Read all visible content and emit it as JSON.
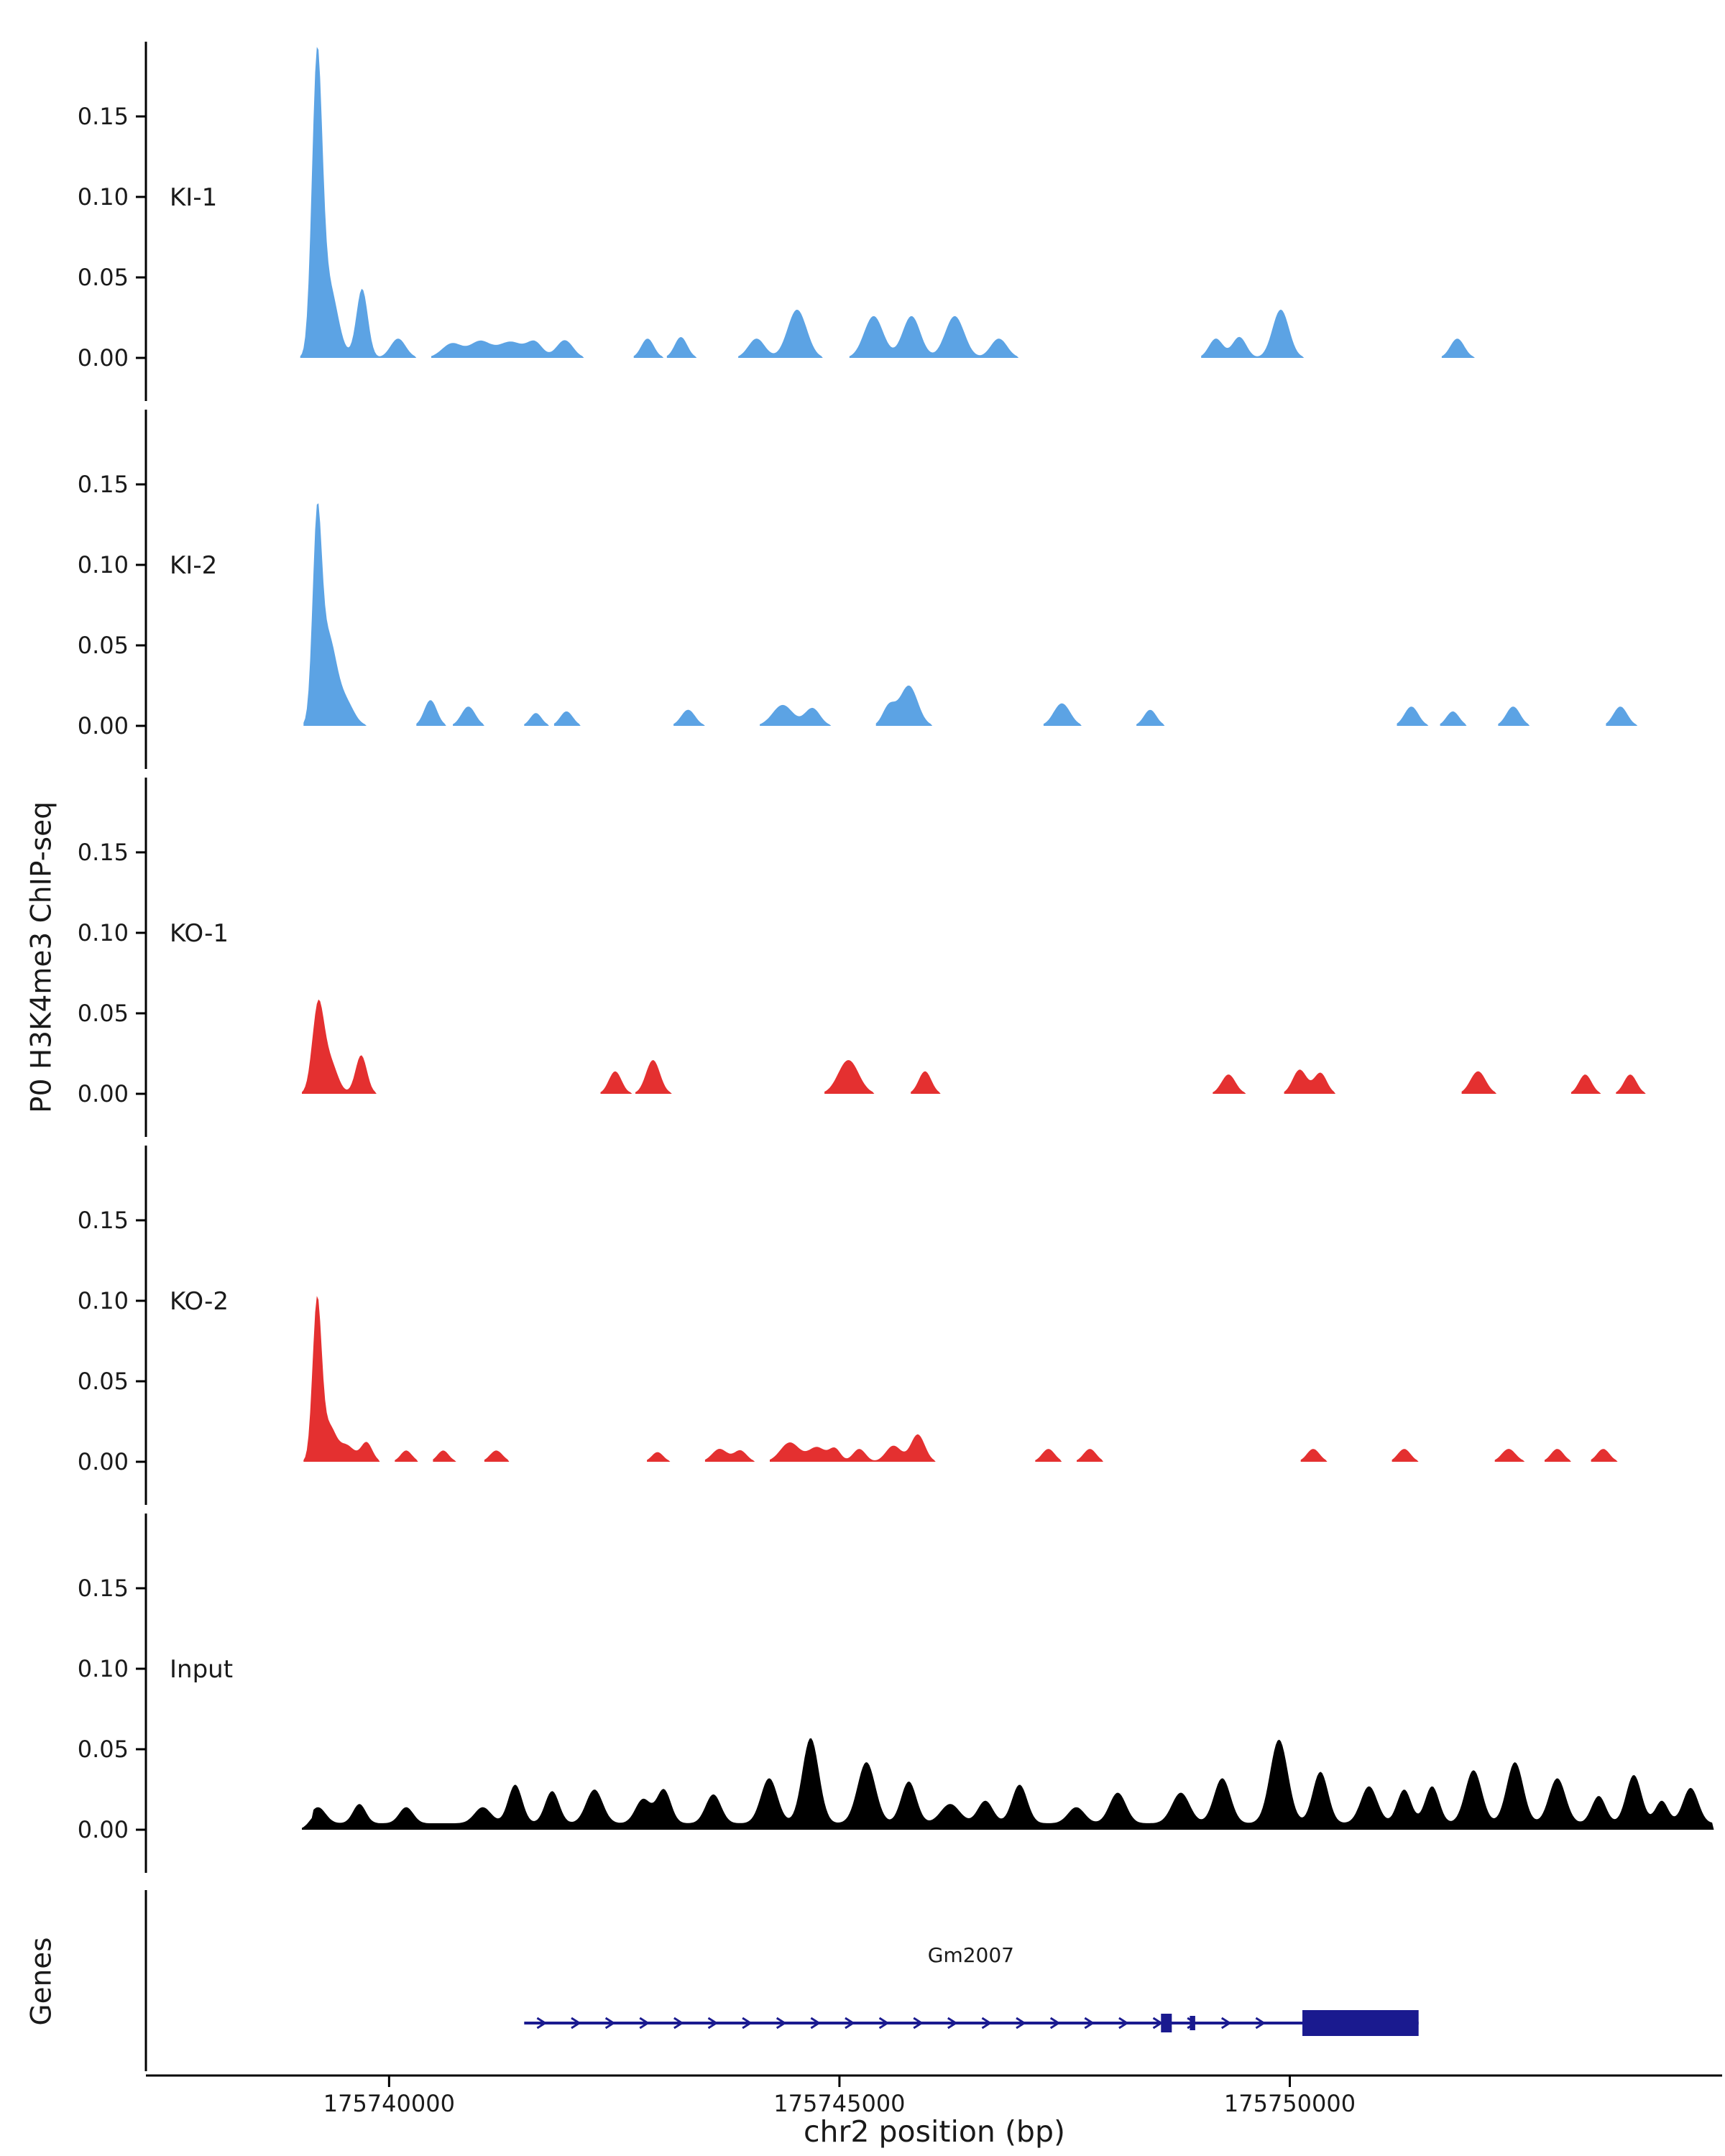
{
  "figure": {
    "y_axis_label": "P0 H3K4me3 ChIP-seq",
    "genes_label": "Genes",
    "x_axis_label": "chr2 position (bp)"
  },
  "chart_data": {
    "type": "area",
    "title": "",
    "xlabel": "chr2 position (bp)",
    "ylabel": "P0 H3K4me3 ChIP-seq",
    "x_domain": [
      175737300,
      175754800
    ],
    "y_domain": [
      0,
      0.197
    ],
    "y_ticks": [
      0,
      0.05,
      0.1,
      0.15
    ],
    "y_tick_labels": [
      "0.00",
      "0.05",
      "0.10",
      "0.15"
    ],
    "x_ticks": [
      175740000,
      175745000,
      175750000
    ],
    "x_tick_labels": [
      "175740000",
      "175745000",
      "175750000"
    ],
    "grid": false,
    "legend": "none",
    "tracks": [
      {
        "name": "KI-1",
        "color": "#5CA3E4",
        "peaks": [
          [
            175739200,
            80,
            0.175
          ],
          [
            175739330,
            140,
            0.045
          ],
          [
            175739700,
            90,
            0.043
          ],
          [
            175740100,
            120,
            0.012
          ],
          [
            175740700,
            160,
            0.009
          ],
          [
            175741010,
            160,
            0.01
          ],
          [
            175741350,
            200,
            0.01
          ],
          [
            175741620,
            120,
            0.009
          ],
          [
            175741950,
            130,
            0.011
          ],
          [
            175742870,
            100,
            0.012
          ],
          [
            175743240,
            100,
            0.013
          ],
          [
            175744080,
            130,
            0.012
          ],
          [
            175744530,
            150,
            0.03
          ],
          [
            175745380,
            150,
            0.026
          ],
          [
            175745800,
            140,
            0.026
          ],
          [
            175746280,
            150,
            0.026
          ],
          [
            175746770,
            130,
            0.012
          ],
          [
            175749180,
            110,
            0.012
          ],
          [
            175749440,
            110,
            0.013
          ],
          [
            175749900,
            130,
            0.03
          ],
          [
            175751860,
            110,
            0.012
          ]
        ]
      },
      {
        "name": "KI-2",
        "color": "#5CA3E4",
        "peaks": [
          [
            175739200,
            70,
            0.115
          ],
          [
            175739320,
            130,
            0.055
          ],
          [
            175739520,
            130,
            0.014
          ],
          [
            175740460,
            100,
            0.016
          ],
          [
            175740880,
            110,
            0.012
          ],
          [
            175741630,
            90,
            0.008
          ],
          [
            175741970,
            100,
            0.009
          ],
          [
            175743320,
            110,
            0.01
          ],
          [
            175744370,
            160,
            0.013
          ],
          [
            175744700,
            120,
            0.011
          ],
          [
            175745550,
            100,
            0.012
          ],
          [
            175745770,
            140,
            0.025
          ],
          [
            175747470,
            130,
            0.014
          ],
          [
            175748450,
            100,
            0.01
          ],
          [
            175751350,
            110,
            0.012
          ],
          [
            175751810,
            100,
            0.009
          ],
          [
            175752480,
            110,
            0.012
          ],
          [
            175753670,
            110,
            0.012
          ]
        ]
      },
      {
        "name": "KO-1",
        "color": "#E43030",
        "peaks": [
          [
            175739210,
            90,
            0.052
          ],
          [
            175739340,
            120,
            0.02
          ],
          [
            175739690,
            90,
            0.024
          ],
          [
            175742510,
            100,
            0.014
          ],
          [
            175742930,
            110,
            0.021
          ],
          [
            175745100,
            160,
            0.021
          ],
          [
            175745950,
            100,
            0.014
          ],
          [
            175749320,
            110,
            0.012
          ],
          [
            175750110,
            110,
            0.015
          ],
          [
            175750340,
            100,
            0.013
          ],
          [
            175752090,
            120,
            0.014
          ],
          [
            175753280,
            100,
            0.012
          ],
          [
            175753780,
            100,
            0.012
          ]
        ]
      },
      {
        "name": "KO-2",
        "color": "#E43030",
        "peaks": [
          [
            175739200,
            70,
            0.098
          ],
          [
            175739330,
            110,
            0.022
          ],
          [
            175739530,
            120,
            0.01
          ],
          [
            175739750,
            90,
            0.012
          ],
          [
            175740190,
            90,
            0.007
          ],
          [
            175740600,
            90,
            0.007
          ],
          [
            175741190,
            100,
            0.007
          ],
          [
            175742980,
            90,
            0.006
          ],
          [
            175743670,
            120,
            0.008
          ],
          [
            175743900,
            100,
            0.007
          ],
          [
            175744450,
            150,
            0.012
          ],
          [
            175744750,
            130,
            0.009
          ],
          [
            175744950,
            90,
            0.008
          ],
          [
            175745220,
            100,
            0.008
          ],
          [
            175745600,
            120,
            0.01
          ],
          [
            175745870,
            110,
            0.017
          ],
          [
            175747320,
            100,
            0.008
          ],
          [
            175747780,
            100,
            0.008
          ],
          [
            175750260,
            100,
            0.008
          ],
          [
            175751270,
            100,
            0.008
          ],
          [
            175752430,
            110,
            0.008
          ],
          [
            175752970,
            100,
            0.008
          ],
          [
            175753480,
            100,
            0.008
          ]
        ]
      },
      {
        "name": "Input",
        "color": "#000000",
        "baseline": [
          175739150,
          175754700,
          0.004
        ],
        "peaks": [
          [
            175739210,
            120,
            0.01
          ],
          [
            175739670,
            100,
            0.012
          ],
          [
            175740190,
            110,
            0.01
          ],
          [
            175741040,
            130,
            0.01
          ],
          [
            175741400,
            110,
            0.024
          ],
          [
            175741810,
            110,
            0.02
          ],
          [
            175742280,
            130,
            0.021
          ],
          [
            175742820,
            120,
            0.015
          ],
          [
            175743050,
            110,
            0.021
          ],
          [
            175743600,
            120,
            0.018
          ],
          [
            175744220,
            130,
            0.028
          ],
          [
            175744680,
            130,
            0.053
          ],
          [
            175745300,
            140,
            0.038
          ],
          [
            175745770,
            120,
            0.026
          ],
          [
            175746230,
            150,
            0.012
          ],
          [
            175746620,
            120,
            0.014
          ],
          [
            175747000,
            120,
            0.024
          ],
          [
            175747630,
            130,
            0.01
          ],
          [
            175748090,
            130,
            0.019
          ],
          [
            175748790,
            140,
            0.019
          ],
          [
            175749250,
            130,
            0.028
          ],
          [
            175749880,
            140,
            0.052
          ],
          [
            175750340,
            120,
            0.032
          ],
          [
            175750880,
            130,
            0.023
          ],
          [
            175751270,
            110,
            0.021
          ],
          [
            175751580,
            110,
            0.023
          ],
          [
            175752040,
            130,
            0.033
          ],
          [
            175752500,
            130,
            0.038
          ],
          [
            175752970,
            130,
            0.028
          ],
          [
            175753430,
            110,
            0.017
          ],
          [
            175753820,
            120,
            0.03
          ],
          [
            175754130,
            100,
            0.014
          ],
          [
            175754450,
            120,
            0.022
          ]
        ]
      }
    ],
    "gene": {
      "name": "Gm2007",
      "strand": "+",
      "start": 175741500,
      "end": 175751430,
      "exons": [
        [
          175748570,
          175748690,
          26
        ],
        [
          175748890,
          175748950,
          20
        ],
        [
          175750140,
          175751430,
          36
        ]
      ],
      "arrow_start": 175741700,
      "arrow_end": 175750050,
      "arrow_step": 380,
      "label_x": 175746460,
      "color": "#1A1A8F"
    }
  }
}
